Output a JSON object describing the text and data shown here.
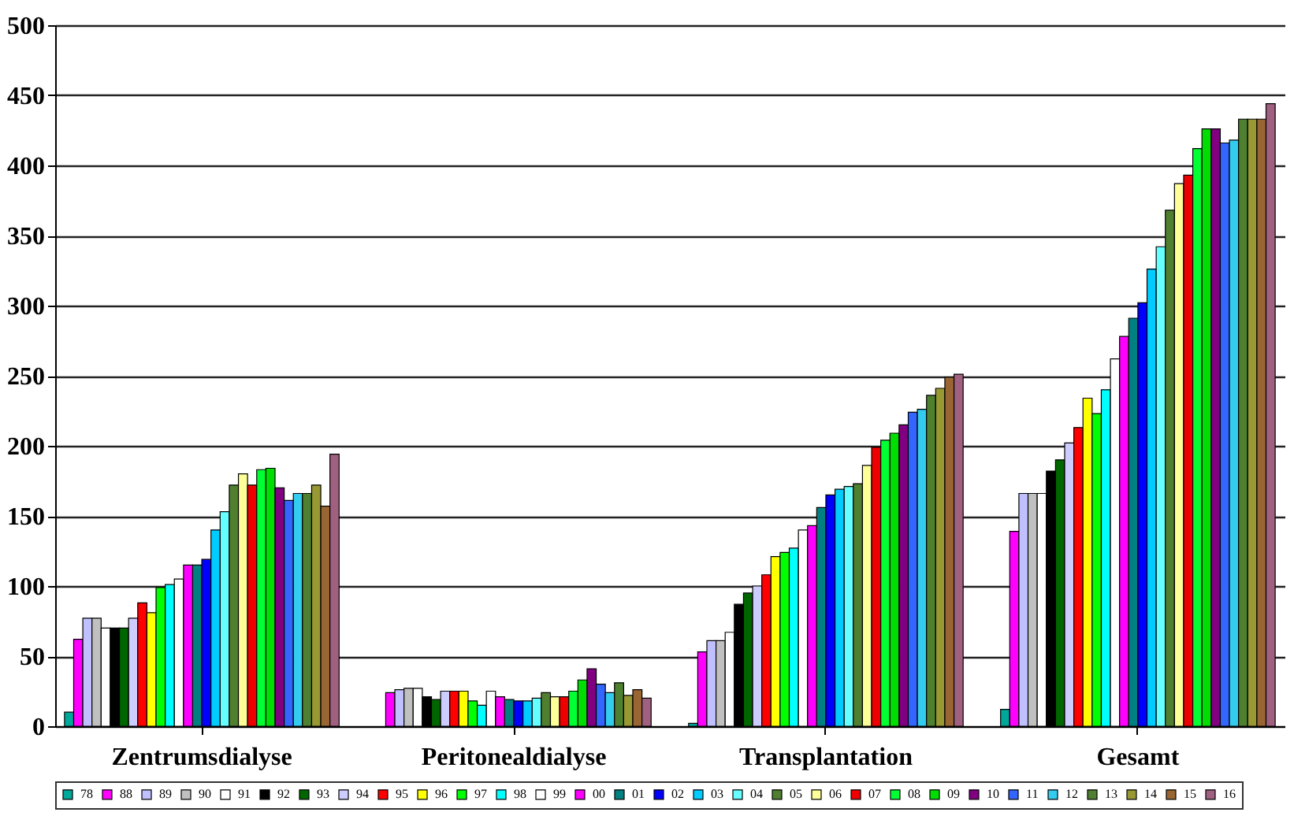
{
  "chart_data": {
    "type": "bar",
    "categories": [
      "Zentrumsdialyse",
      "Peritonealdialyse",
      "Transplantation",
      "Gesamt"
    ],
    "ylim": [
      0,
      500
    ],
    "yticks": [
      0,
      50,
      100,
      150,
      200,
      250,
      300,
      350,
      400,
      450,
      500
    ],
    "grid": "y",
    "legend": "bottom",
    "series": [
      {
        "name": "78",
        "color": "#00a89a",
        "values": [
          10,
          null,
          2,
          12
        ]
      },
      {
        "name": "88",
        "color": "#ff00ff",
        "values": [
          62,
          24,
          53,
          139
        ]
      },
      {
        "name": "89",
        "color": "#c0c0ff",
        "values": [
          77,
          26,
          61,
          166
        ]
      },
      {
        "name": "90",
        "color": "#c0c0c0",
        "values": [
          77,
          27,
          61,
          166
        ]
      },
      {
        "name": "91",
        "color": "#ffffff",
        "values": [
          70,
          27,
          67,
          166
        ]
      },
      {
        "name": "92",
        "color": "#000000",
        "values": [
          70,
          21,
          87,
          182
        ]
      },
      {
        "name": "93",
        "color": "#006600",
        "values": [
          70,
          19,
          95,
          190
        ]
      },
      {
        "name": "94",
        "color": "#ccccff",
        "values": [
          77,
          25,
          100,
          202
        ]
      },
      {
        "name": "95",
        "color": "#ff0000",
        "values": [
          88,
          25,
          108,
          213
        ]
      },
      {
        "name": "96",
        "color": "#ffff00",
        "values": [
          81,
          25,
          121,
          234
        ]
      },
      {
        "name": "97",
        "color": "#00ff00",
        "values": [
          99,
          18,
          124,
          223
        ]
      },
      {
        "name": "98",
        "color": "#00ffff",
        "values": [
          101,
          15,
          127,
          240
        ]
      },
      {
        "name": "99",
        "color": "#ffffff",
        "values": [
          105,
          25,
          140,
          262
        ]
      },
      {
        "name": "00",
        "color": "#ff00ff",
        "values": [
          115,
          21,
          143,
          278
        ]
      },
      {
        "name": "01",
        "color": "#008080",
        "values": [
          115,
          19,
          156,
          291
        ]
      },
      {
        "name": "02",
        "color": "#0000ff",
        "values": [
          119,
          18,
          165,
          302
        ]
      },
      {
        "name": "03",
        "color": "#00ccff",
        "values": [
          140,
          18,
          169,
          326
        ]
      },
      {
        "name": "04",
        "color": "#66ffff",
        "values": [
          153,
          20,
          171,
          342
        ]
      },
      {
        "name": "05",
        "color": "#4f7f2f",
        "values": [
          172,
          24,
          173,
          368
        ]
      },
      {
        "name": "06",
        "color": "#ffff99",
        "values": [
          180,
          21,
          186,
          387
        ]
      },
      {
        "name": "07",
        "color": "#ee0000",
        "values": [
          172,
          21,
          199,
          393
        ]
      },
      {
        "name": "08",
        "color": "#00ff33",
        "values": [
          183,
          25,
          204,
          412
        ]
      },
      {
        "name": "09",
        "color": "#00dd00",
        "values": [
          184,
          33,
          209,
          426
        ]
      },
      {
        "name": "10",
        "color": "#800080",
        "values": [
          170,
          41,
          215,
          426
        ]
      },
      {
        "name": "11",
        "color": "#3366ff",
        "values": [
          161,
          30,
          224,
          416
        ]
      },
      {
        "name": "12",
        "color": "#33ccee",
        "values": [
          166,
          24,
          226,
          418
        ]
      },
      {
        "name": "13",
        "color": "#4f8030",
        "values": [
          166,
          31,
          236,
          433
        ]
      },
      {
        "name": "14",
        "color": "#999933",
        "values": [
          172,
          22,
          241,
          433
        ]
      },
      {
        "name": "15",
        "color": "#996633",
        "values": [
          157,
          26,
          249,
          433
        ]
      },
      {
        "name": "16",
        "color": "#a06080",
        "values": [
          194,
          20,
          251,
          444
        ]
      }
    ]
  }
}
